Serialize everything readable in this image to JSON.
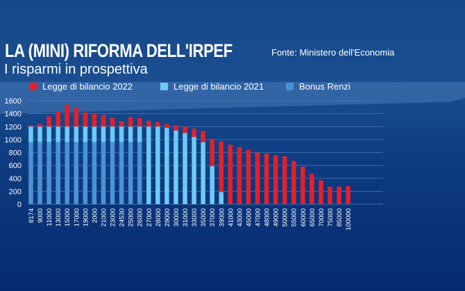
{
  "header": {
    "title": "LA (MINI) RIFORMA DELL'IRPEF",
    "subtitle": "I risparmi in prospettiva",
    "source": "Fonte: Ministero dell'Economia"
  },
  "colors": {
    "legge_2022": "#e3202a",
    "legge_2021": "#6ccaf7",
    "bonus_renzi": "#4a92d4",
    "gridline": "#4f7dbb",
    "background": "#0f3f84"
  },
  "chart_data": {
    "type": "bar",
    "stacked": true,
    "title": "LA (MINI) RIFORMA DELL'IRPEF",
    "subtitle": "I risparmi in prospettiva",
    "xlabel": "",
    "ylabel": "",
    "ylim": [
      0,
      1600
    ],
    "yticks": [
      0,
      200,
      400,
      600,
      800,
      1000,
      1200,
      1400,
      1600
    ],
    "grid": true,
    "legend_position": "top",
    "categories": [
      "8174",
      "9000",
      "11000",
      "13000",
      "15000",
      "17000",
      "19000",
      "2000",
      "21000",
      "23000",
      "24530",
      "25000",
      "26000",
      "27000",
      "28000",
      "29000",
      "30000",
      "31000",
      "33000",
      "35000",
      "37000",
      "39000",
      "41000",
      "43000",
      "45000",
      "47000",
      "48000",
      "49000",
      "50000",
      "55000",
      "60000",
      "65000",
      "70000",
      "75000",
      "85000",
      "100000"
    ],
    "series": [
      {
        "name": "Bonus Renzi",
        "color_key": "bonus_renzi",
        "values": [
          960,
          960,
          960,
          960,
          960,
          960,
          960,
          960,
          960,
          960,
          960,
          960,
          960,
          0,
          0,
          0,
          0,
          0,
          0,
          0,
          0,
          0,
          0,
          0,
          0,
          0,
          0,
          0,
          0,
          0,
          0,
          0,
          0,
          0,
          0,
          0
        ]
      },
      {
        "name": "Legge di bilancio 2021",
        "color_key": "legge_2021",
        "values": [
          240,
          240,
          240,
          240,
          240,
          240,
          240,
          240,
          240,
          240,
          240,
          240,
          240,
          1200,
          1200,
          1180,
          1140,
          1100,
          1040,
          960,
          590,
          190,
          0,
          0,
          0,
          0,
          0,
          0,
          0,
          0,
          0,
          0,
          0,
          0,
          0,
          0
        ]
      },
      {
        "name": "Legge di bilancio 2022",
        "color_key": "legge_2022",
        "values": [
          20,
          40,
          160,
          230,
          340,
          290,
          220,
          200,
          180,
          140,
          80,
          150,
          130,
          90,
          70,
          60,
          80,
          100,
          130,
          170,
          420,
          780,
          920,
          880,
          840,
          800,
          780,
          760,
          740,
          670,
          580,
          470,
          370,
          270,
          270,
          280
        ]
      }
    ]
  },
  "legend": [
    {
      "label": "Legge di bilancio 2022",
      "color_key": "legge_2022"
    },
    {
      "label": "Legge di bilancio 2021",
      "color_key": "legge_2021"
    },
    {
      "label": "Bonus Renzi",
      "color_key": "bonus_renzi"
    }
  ]
}
